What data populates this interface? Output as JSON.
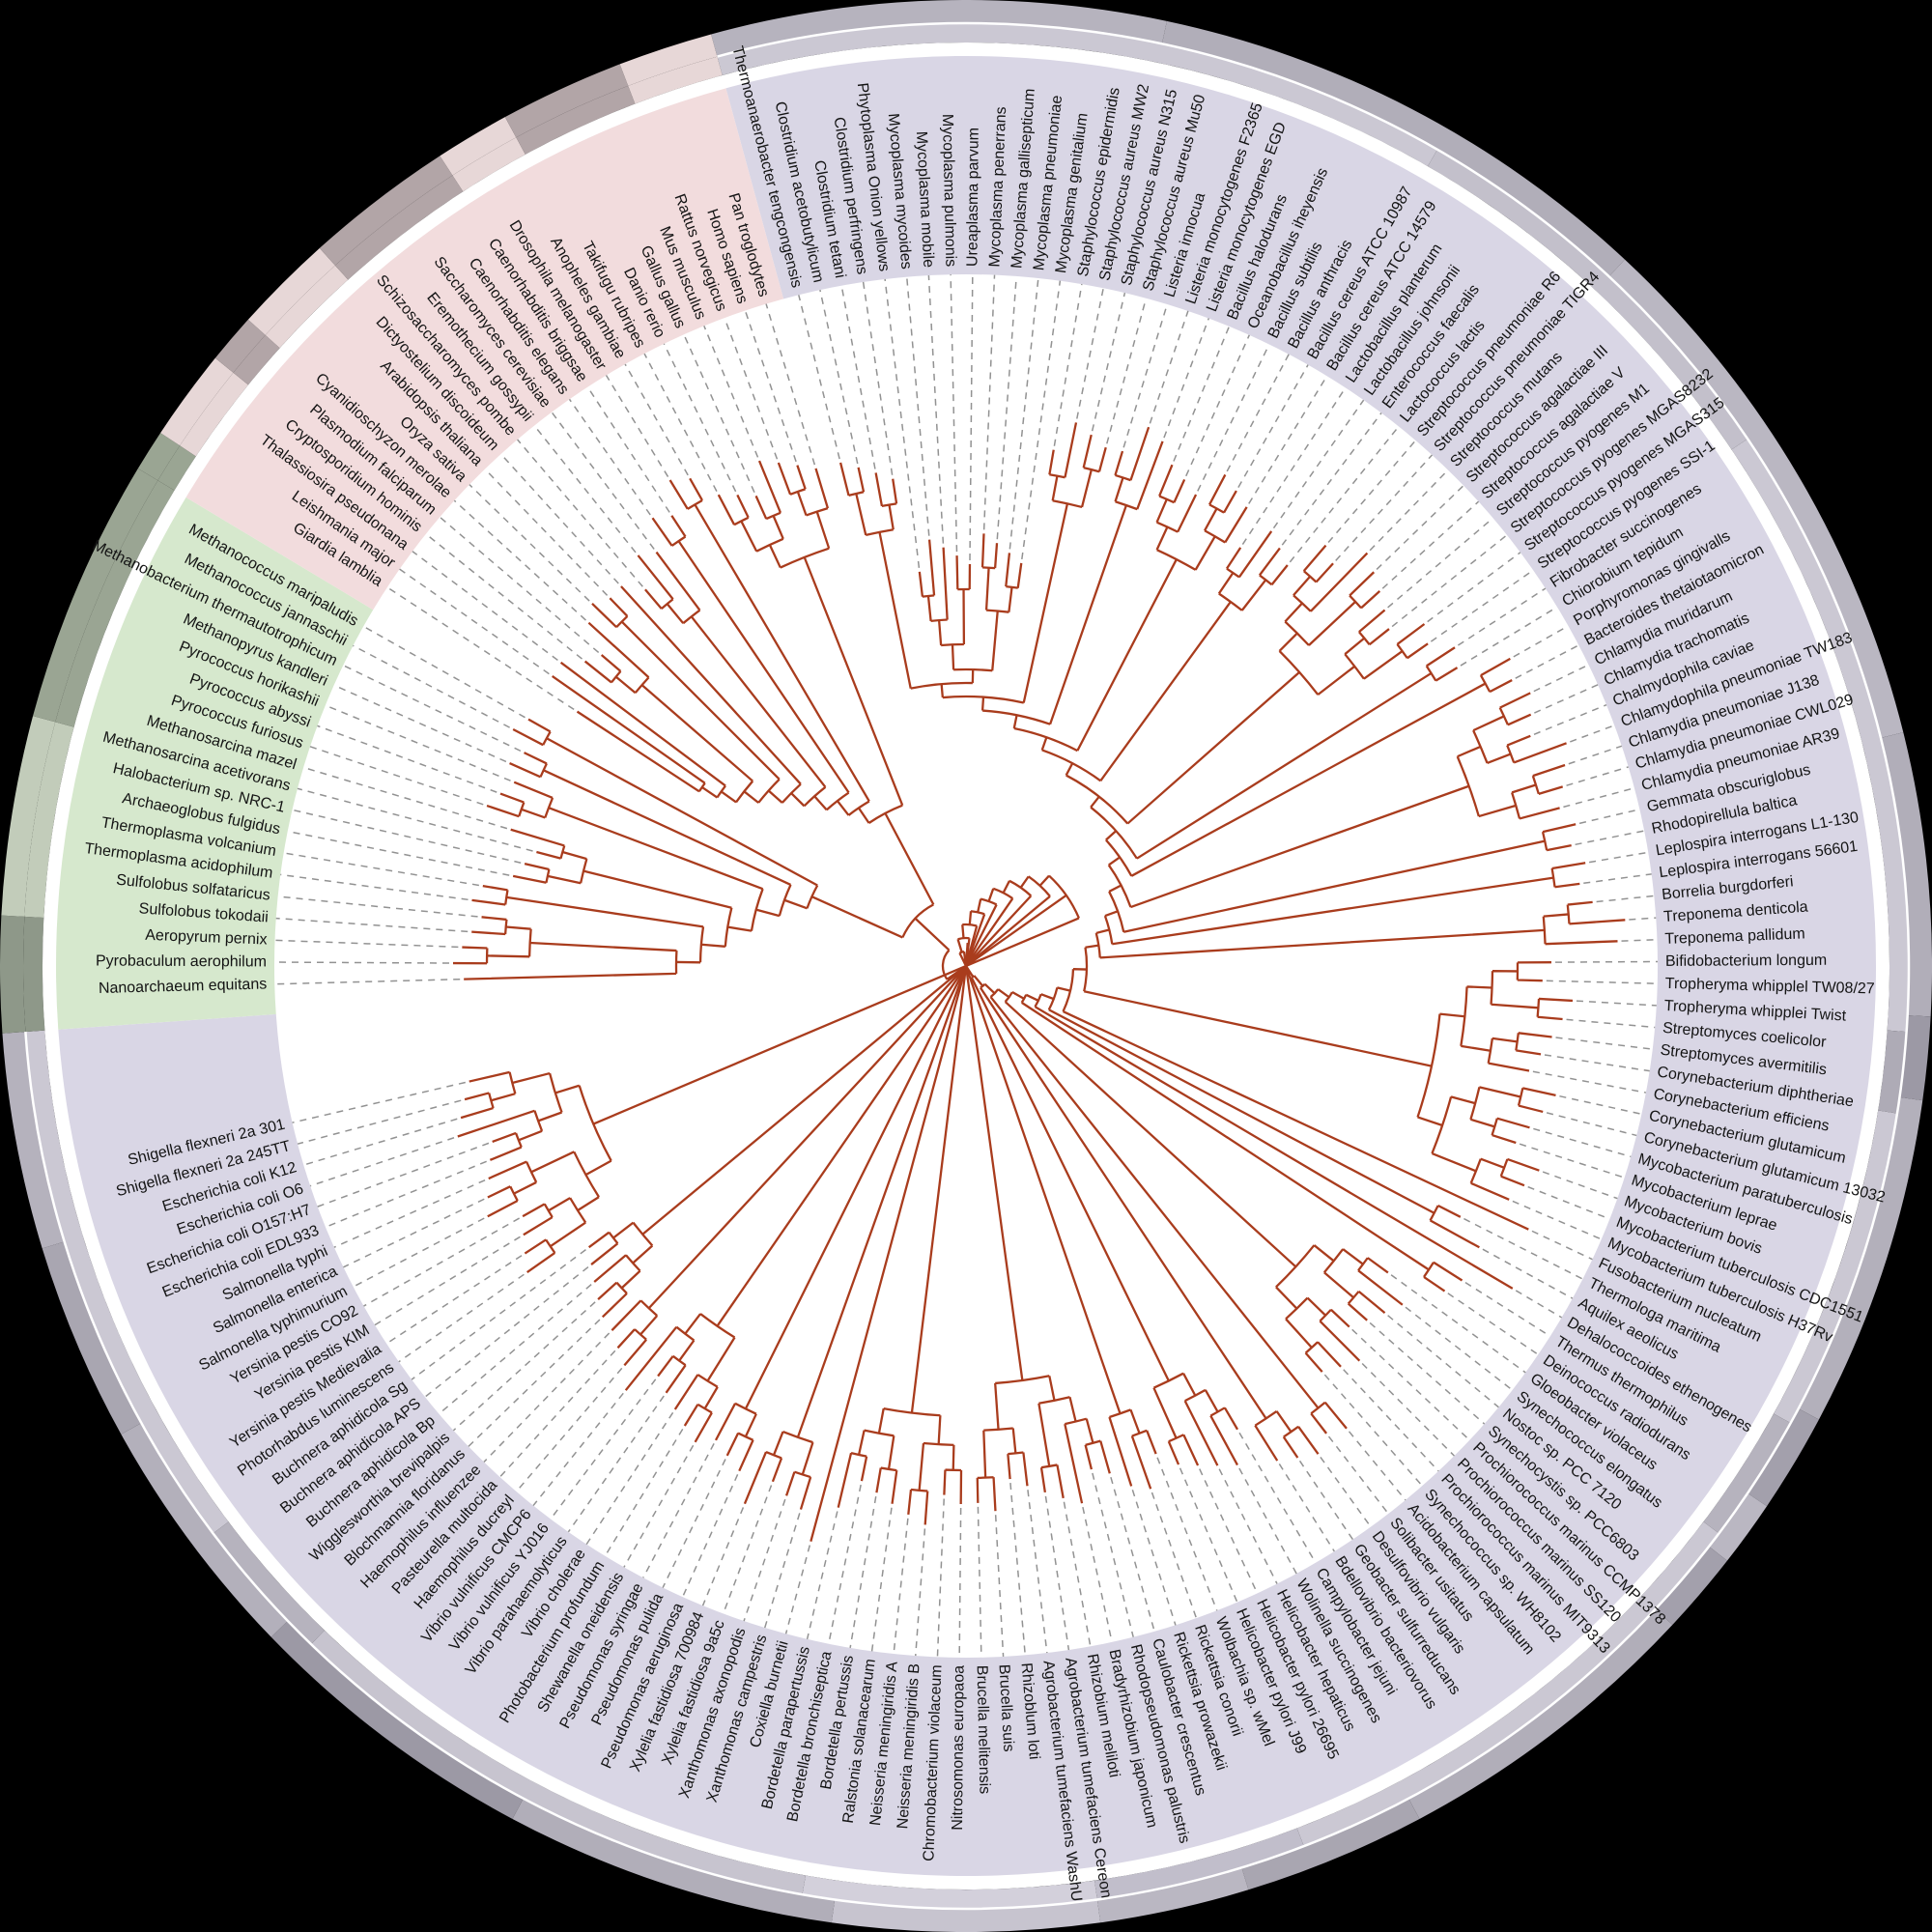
{
  "figure": {
    "type": "Circular phylogenetic tree of life (191 species)",
    "background": "#000000",
    "branch_color": "#a93c1d",
    "leader_color": "#929292",
    "label_color": "#141414",
    "gap_color": "#ffffff",
    "leaf_angle_step": 1.8182,
    "label_radius": 724,
    "band_inner_radius": 716,
    "band_outer_radius": 942,
    "ring_inner_radius": 956,
    "ring_mid_radius": 976,
    "ring_outer_radius": 1000
  },
  "domains": [
    {
      "id": "bacteria",
      "band_color": "#d9d6e5",
      "angle_start": -15.3,
      "angle_end": 266.0,
      "first_leaf_angle": -14.0,
      "spine": {
        "r_start": 335,
        "r_end": 88
      },
      "groups": [
        {
          "tipR": 520,
          "leaves": [
            "Thermoanaerobacter tengcongensis",
            "Clostridium acetobutylicum",
            "Clostridium tetani",
            "Clostridium perfringens"
          ]
        },
        {
          "tipR": 430,
          "leaves": [
            "Phytoplasma Onion yellows",
            "Mycoplasma mycoides",
            "Mycoplasma mobile",
            "Mycoplasma pulmonis",
            "Ureaplasma parvum",
            "Mycoplasma penerrans",
            "Mycoplasma gallisepticum",
            "Mycoplasma pneumoniae",
            "Mycoplasma genitalium"
          ]
        },
        {
          "tipR": 560,
          "leaves": [
            "Staphylococcus epidermidis",
            "Staphylococcus aureus MW2",
            "Staphylococcus aureus N315",
            "Staphylococcus aureus Mu50"
          ]
        },
        {
          "tipR": 570,
          "leaves": [
            "Listeria innocua",
            "Listeria monocytogenes F2365",
            "Listeria monocytogenes EGD"
          ]
        },
        {
          "tipR": 560,
          "leaves": [
            "Bacillus halodurans",
            "Oceanobacillus iheyensis",
            "Bacillus subtilis",
            "Bacillus anthracis",
            "Bacillus cereus ATCC 10987",
            "Bacillus cereus ATCC 14579"
          ]
        },
        {
          "tipR": 530,
          "leaves": [
            "Lactobacillus planterum",
            "Lactobacillus johnsonii",
            "Enterococcus faecalis",
            "Lactococcus lactis"
          ]
        },
        {
          "tipR": 580,
          "leaves": [
            "Streptococcus pneumoniae R6",
            "Streptococcus pneumoniae TIGR4",
            "Streptococcus mutans",
            "Streptococcus agalactiae III",
            "Streptococcus agalactiae V",
            "Streptococcus pyogenes M1",
            "Streptococcus pyogenes MGAS8232",
            "Streptococcus pyogenes MGAS315",
            "Streptococcus pyogenes SSI-1"
          ]
        },
        {
          "tipR": 610,
          "leaves": [
            "Fibrobacter succinogenes",
            "Chiorobium tepidum"
          ]
        },
        {
          "tipR": 630,
          "leaves": [
            "Porphyromonas gingivalls",
            "Bacteroides thetaiotaomicron"
          ]
        },
        {
          "tipR": 650,
          "leaves": [
            "Chlamydia muridarum",
            "Chlamydia trachomatis",
            "Chalmydophila caviae",
            "Chlamydophila pneumoniae TW183",
            "Chlamydia pneumoniae J138",
            "Chlamydia pneumoniae CWL029",
            "Chlamydia pneumoniae AR39"
          ]
        },
        {
          "tipR": 630,
          "leaves": [
            "Gemmata obscuriglobus",
            "Rhodopirellula baltica"
          ]
        },
        {
          "tipR": 650,
          "leaves": [
            "Leplospira interrogans L1-130",
            "Leplospira interrogans 56601"
          ]
        },
        {
          "tipR": 670,
          "leaves": [
            "Borrelia burgdorferi",
            "Treponema denticola",
            "Treponema pallidum"
          ]
        },
        {
          "tipR": 610,
          "leaves": [
            "Bifidobacterium longum",
            "Tropheryma whipplel TW08/27",
            "Tropheryma whipplei Twist",
            "Streptomyces coelicolor",
            "Streptomyces avermitilis",
            "Corynebacterium diphtheriae",
            "Corynebacterium efficiens",
            "Corynebacterium glutamicum",
            "Corynebacterium glutamicum 13032",
            "Mycobacterium paratuberculosis",
            "Mycobacterium leprae",
            "Mycobacterium bovis",
            "Mycobacterium tuberculosis CDC1551",
            "Mycobacterium tuberculosis H37Rv"
          ]
        },
        {
          "tipR": 650,
          "leaves": [
            "Fusobacterium nucleatum"
          ]
        },
        {
          "tipR": 590,
          "leaves": [
            "Thermologa maritima",
            "Aquilex aeolicus"
          ]
        },
        {
          "tipR": 650,
          "leaves": [
            "Dehalococcoides ethenogenes"
          ]
        },
        {
          "tipR": 610,
          "leaves": [
            "Thermus thermophilus",
            "Deinococcus radiodurans"
          ]
        },
        {
          "tipR": 560,
          "leaves": [
            "Gloeobacter violaceus",
            "Synechococcus elongatus",
            "Nostoc sp. PCC 7120",
            "Synechocystis sp. PCC6803",
            "Prochiorococcus marinus CCMP1378",
            "Prochiorococcus marinus SS120",
            "Prochiorococcus marinus MIT9313",
            "Synechococcus sp. WH8102"
          ]
        },
        {
          "tipR": 630,
          "leaves": [
            "Acidobacterium capsulatum",
            "Solibacter usitatus"
          ]
        },
        {
          "tipR": 610,
          "leaves": [
            "Desulfovibrio vulgaris",
            "Geobacter sulfurreducans",
            "Bdellovibrio bacteriovorus"
          ]
        },
        {
          "tipR": 570,
          "leaves": [
            "Campylobacter jejuni",
            "Wolinella succinogenes",
            "Helicobacter hepaticus",
            "Helicobacter pylori 26695",
            "Helicobacter pylori J99"
          ]
        },
        {
          "tipR": 560,
          "leaves": [
            "Wolbachia sp. wMel",
            "Rickettsia conorii",
            "Rickettsia prowazekii"
          ]
        },
        {
          "tipR": 550,
          "leaves": [
            "Caulobacter crescentus",
            "Rhodopseudomonas palustris",
            "Bradyrhizobium japonicum",
            "Rhizobium meliloti",
            "Agrobacterium tumefaciens Cereon",
            "Agrobacterium tumefaciens WashU",
            "Rhizoblum loti",
            "Brucella suis",
            "Brucella melitensis"
          ]
        },
        {
          "tipR": 560,
          "leaves": [
            "Nitrosomonas europaoa",
            "Chromobacterium violaceum",
            "Neisseria meningiridis B",
            "Neisseria meningiridis A",
            "Ralstonia solanacearum",
            "Bordetella pertussis",
            "Bordetella bronchiseptica",
            "Bordetella parapertussis"
          ]
        },
        {
          "tipR": 610,
          "leaves": [
            "Coxiella burnetii"
          ]
        },
        {
          "tipR": 590,
          "leaves": [
            "Xanthomonas campestris",
            "Xanthomonas axonopodis",
            "Xylelia fastidiosa 9a5c",
            "Xylelia fastidiosa 700984"
          ]
        },
        {
          "tipR": 570,
          "leaves": [
            "Pseudomonas aeruginosa",
            "Pseudomonas pulida",
            "Pseudomonas syringae"
          ]
        },
        {
          "tipR": 550,
          "leaves": [
            "Shewanella oneidensis",
            "Photobacterium profundum",
            "Vibrio cholerae",
            "Vibrio parahaemolyticus",
            "Vibrio vulnificus YJ016",
            "Vibrio vulnificus CMCP6"
          ]
        },
        {
          "tipR": 540,
          "leaves": [
            "Haemophilus ducreyl",
            "Pasteurella multocida",
            "Haemophilus influenzee"
          ]
        },
        {
          "tipR": 505,
          "leaves": [
            "Blochmannia floridanus",
            "Wigglesworthia brevipalpis",
            "Buchnera aphidicola Bp",
            "Buchnera aphidicola APS",
            "Buchnera aphidicola Sg"
          ]
        },
        {
          "tipR": 540,
          "leaves": [
            "Photorhabdus luminescens",
            "Yersinia pestis Medievalia",
            "Yersinia pestis KIM",
            "Yersinia pestis CO92",
            "Salmonella typhimurium",
            "Salmonella enterica",
            "Salmonella typhi",
            "Escherichia coli EDL933",
            "Escherichia coli O157:H7",
            "Escherichia coli O6",
            "Escherichia coli K12",
            "Shigella flexneri 2a 245TT",
            "Shigella flexneri 2a 301"
          ]
        }
      ]
    },
    {
      "id": "archaea",
      "band_color": "#d6e8cd",
      "angle_start": 266.0,
      "angle_end": 301.0,
      "first_leaf_angle": 268.5,
      "spine": {
        "r_start": 300,
        "r_end": 150
      },
      "groups": [
        {
          "tipR": 500,
          "leaves": [
            "Nanoarchaeum equitans"
          ]
        },
        {
          "tipR": 520,
          "leaves": [
            "Pyrobaculum aerophilum",
            "Aeropyrum pernix",
            "Sulfolobus tokodaii",
            "Sulfolobus solfataricus"
          ]
        },
        {
          "tipR": 500,
          "leaves": [
            "Thermoplasma acidophilum",
            "Thermoplasma volcanium"
          ]
        },
        {
          "tipR": 480,
          "leaves": [
            "Archaeoglobus fulgidus",
            "Halobacterium sp. NRC-1",
            "Methanosarcina acetivorans",
            "Methanosarcina mazel"
          ]
        },
        {
          "tipR": 520,
          "leaves": [
            "Pyrococcus furiosus",
            "Pyrococcus abyssi",
            "Pyrococcus horikashii"
          ]
        },
        {
          "tipR": 500,
          "leaves": [
            "Methanopyrus kandleri",
            "Methanobacterium thermautotrophicum"
          ]
        },
        {
          "tipR": 530,
          "leaves": [
            "Methanococcus jannaschii",
            "Methanococcus maripaludis"
          ]
        }
      ]
    },
    {
      "id": "eukaryota",
      "band_color": "#f2dcdd",
      "angle_start": 301.0,
      "angle_end": 344.7,
      "first_leaf_angle": 303.2,
      "spine": {
        "r_start": 330,
        "r_end": 160
      },
      "groups": [
        {
          "tipR": 500,
          "leaves": [
            "Giardia lamblia"
          ]
        },
        {
          "tipR": 510,
          "leaves": [
            "Leishmania major"
          ]
        },
        {
          "tipR": 520,
          "leaves": [
            "Thalassiosira pseudonana"
          ]
        },
        {
          "tipR": 510,
          "leaves": [
            "Cryptosporidium hominis",
            "Plasmodium falciparum",
            "Cyanidioschyzon merolae"
          ]
        },
        {
          "tipR": 530,
          "leaves": [
            "Oryza sativa",
            "Arabidopsis thaliana"
          ]
        },
        {
          "tipR": 540,
          "leaves": [
            "Dictyostelium discoideum"
          ]
        },
        {
          "tipR": 530,
          "leaves": [
            "Schizosaccharomyces pombe",
            "Eremothecium gossypii",
            "Saccharomyces cerevisiae"
          ]
        },
        {
          "tipR": 570,
          "leaves": [
            "Caenorhabditis elegans",
            "Caenorhabditis briggsae"
          ]
        },
        {
          "tipR": 570,
          "leaves": [
            "Drosophila melanogaster",
            "Anopheles gambiae"
          ]
        },
        {
          "tipR": 550,
          "leaves": [
            "Takifugu rubripes",
            "Danio rerio",
            "Gallus gallus",
            "Mus musculus",
            "Rattus norvegicus",
            "Homo sapiens",
            "Pan troglodytes"
          ]
        }
      ]
    }
  ],
  "outer_rings": {
    "outer": [
      [
        -15.3,
        12,
        "#b6b3be"
      ],
      [
        12,
        43,
        "#b1aeb9"
      ],
      [
        43,
        76,
        "#bab7c2"
      ],
      [
        76,
        93,
        "#b1aeb9"
      ],
      [
        93,
        98,
        "#9c99a5"
      ],
      [
        98,
        118,
        "#b3b0bb"
      ],
      [
        118,
        124,
        "#a3a0ac"
      ],
      [
        124,
        128,
        "#bab7c2"
      ],
      [
        128,
        133,
        "#a3a0ac"
      ],
      [
        133,
        152,
        "#b1aeb9"
      ],
      [
        152,
        163,
        "#a9a6b1"
      ],
      [
        163,
        172,
        "#bab7c2"
      ],
      [
        172,
        188,
        "#c7c4cf"
      ],
      [
        188,
        208,
        "#b1aeb9"
      ],
      [
        208,
        226,
        "#9c99a5"
      ],
      [
        226,
        241,
        "#b3b0bb"
      ],
      [
        241,
        253,
        "#a9a6b1"
      ],
      [
        253,
        266,
        "#b5b2bd"
      ],
      [
        266,
        273,
        "#8e9889"
      ],
      [
        273,
        285,
        "#c2ccba"
      ],
      [
        285,
        301,
        "#9aa593"
      ],
      [
        301,
        303.5,
        "#9aa593"
      ],
      [
        303.5,
        309,
        "#e7d7d7"
      ],
      [
        309,
        312,
        "#b2a5a7"
      ],
      [
        312,
        318,
        "#e7d7d7"
      ],
      [
        318,
        327,
        "#b2a5a7"
      ],
      [
        327,
        331.5,
        "#e7d7d7"
      ],
      [
        331.5,
        339,
        "#b2a5a7"
      ],
      [
        339,
        344.7,
        "#e7d7d7"
      ]
    ],
    "inner": [
      [
        -15.3,
        30,
        "#cbc8d3"
      ],
      [
        30,
        56,
        "#c3c0cb"
      ],
      [
        56,
        94,
        "#cbc8d3"
      ],
      [
        94,
        99,
        "#aeabb6"
      ],
      [
        99,
        119,
        "#cbc8d3"
      ],
      [
        119,
        127,
        "#b6b3be"
      ],
      [
        127,
        159,
        "#cbc8d3"
      ],
      [
        159,
        172,
        "#c1becb"
      ],
      [
        172,
        190,
        "#d3d0db"
      ],
      [
        190,
        224,
        "#c7c4cf"
      ],
      [
        224,
        233,
        "#b6b3be"
      ],
      [
        233,
        266,
        "#cbc8d3"
      ],
      [
        266,
        273,
        "#8e9889"
      ],
      [
        273,
        285,
        "#c2ccba"
      ],
      [
        285,
        301,
        "#9aa593"
      ],
      [
        301,
        303.5,
        "#9aa593"
      ],
      [
        303.5,
        309,
        "#e7d7d7"
      ],
      [
        309,
        312,
        "#b2a5a7"
      ],
      [
        312,
        318,
        "#e7d7d7"
      ],
      [
        318,
        327,
        "#b2a5a7"
      ],
      [
        327,
        331.5,
        "#e7d7d7"
      ],
      [
        331.5,
        339,
        "#b2a5a7"
      ],
      [
        339,
        344.7,
        "#e7d7d7"
      ]
    ]
  }
}
